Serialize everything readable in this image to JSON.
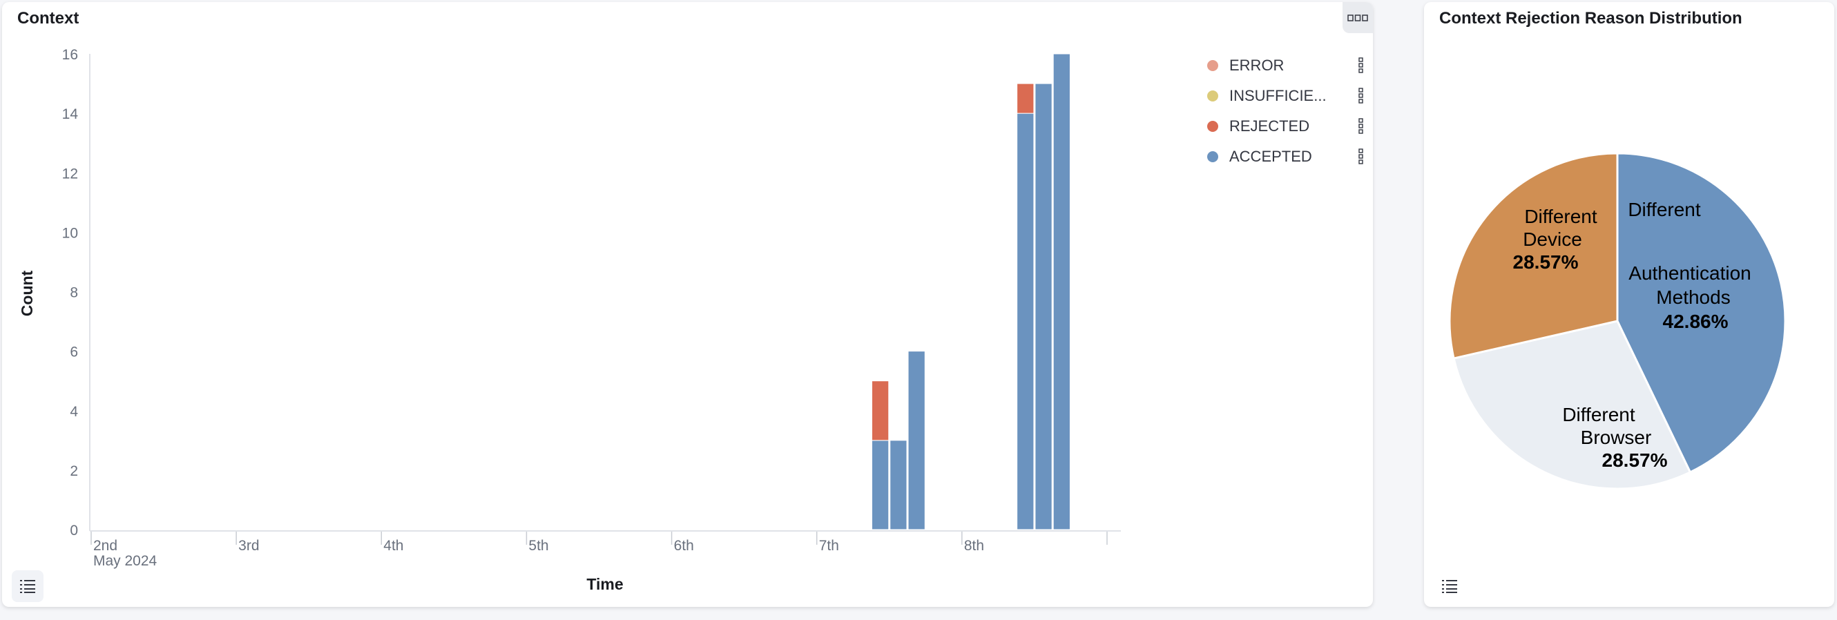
{
  "left_panel": {
    "title": "Context",
    "more_icon": "ellipsis-icon",
    "legend_toggle_icon": "list-icon"
  },
  "right_panel": {
    "title": "Context Rejection Reason Distribution",
    "legend_toggle_icon": "list-icon"
  },
  "chart_data": [
    {
      "type": "bar",
      "stacked": true,
      "xlabel": "Time",
      "ylabel": "Count",
      "ylim": [
        0,
        16
      ],
      "yticks": [
        0,
        2,
        4,
        6,
        8,
        10,
        12,
        14,
        16
      ],
      "xlim": [
        "2024-05-02T00:00",
        "2024-05-09T00:00"
      ],
      "xtick_labels": [
        {
          "date": "2024-05-02",
          "label": "2nd",
          "sub": "May 2024"
        },
        {
          "date": "2024-05-03",
          "label": "3rd"
        },
        {
          "date": "2024-05-04",
          "label": "4th"
        },
        {
          "date": "2024-05-05",
          "label": "5th"
        },
        {
          "date": "2024-05-06",
          "label": "6th"
        },
        {
          "date": "2024-05-07",
          "label": "7th"
        },
        {
          "date": "2024-05-08",
          "label": "8th"
        }
      ],
      "grid": false,
      "legend_position": "top-right",
      "x": [
        "2024-05-07T09:00",
        "2024-05-07T12:00",
        "2024-05-07T15:00",
        "2024-05-08T09:00",
        "2024-05-08T12:00",
        "2024-05-08T15:00"
      ],
      "series": [
        {
          "name": "ACCEPTED",
          "color": "#6b93bf",
          "values": [
            3,
            3,
            6,
            14,
            15,
            16
          ]
        },
        {
          "name": "REJECTED",
          "color": "#da6b52",
          "values": [
            2,
            0,
            0,
            1,
            0,
            0
          ]
        },
        {
          "name": "INSUFFICIE...",
          "color": "#dccb7a",
          "values": [
            0,
            0,
            0,
            0,
            0,
            0
          ]
        },
        {
          "name": "ERROR",
          "color": "#e69e8b",
          "values": [
            0,
            0,
            0,
            0,
            0,
            0
          ]
        }
      ],
      "legend_order": [
        "ERROR",
        "INSUFFICIE...",
        "REJECTED",
        "ACCEPTED"
      ]
    },
    {
      "type": "pie",
      "title": "Context Rejection Reason Distribution",
      "slices": [
        {
          "label_lines": [
            "Different",
            "Authentication",
            "Methods"
          ],
          "percent": "42.86%",
          "value": 42.86,
          "color": "#6b93bf"
        },
        {
          "label_lines": [
            "Different",
            "Browser"
          ],
          "percent": "28.57%",
          "value": 28.57,
          "color": "#eaeef3"
        },
        {
          "label_lines": [
            "Different",
            "Device"
          ],
          "percent": "28.57%",
          "value": 28.57,
          "color": "#d08f53"
        }
      ]
    }
  ]
}
